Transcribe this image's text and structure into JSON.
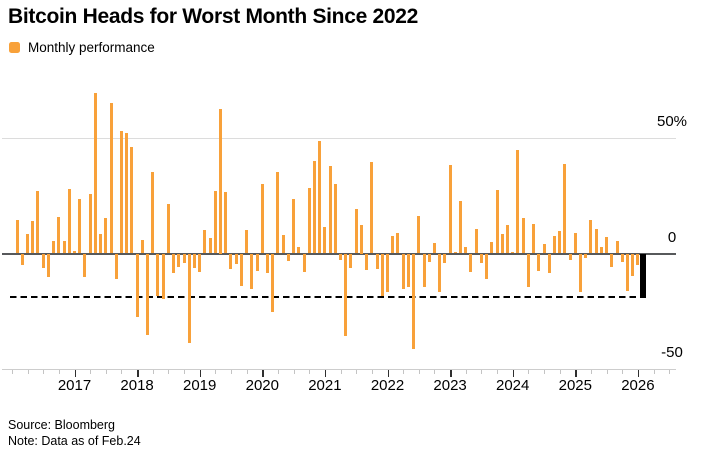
{
  "title": "Bitcoin Heads for Worst Month Since 2022",
  "legend": {
    "label": "Monthly performance"
  },
  "source": {
    "source_line": "Source: Bloomberg",
    "note_line": "Note: Data as of Feb.24"
  },
  "colors": {
    "bar_orange": "#F8A13A",
    "current_bar_black": "#000000",
    "zero_line": "#57595b",
    "gridline": "#dcdcdc",
    "axis_line": "#cdcdcd",
    "reference_line": "#000000"
  },
  "y_axis": {
    "ticks": [
      {
        "label": "50%",
        "value": 50
      },
      {
        "label": "0",
        "value": 0
      },
      {
        "label": "-50",
        "value": -50
      }
    ]
  },
  "x_axis": {
    "years": [
      "2017",
      "2018",
      "2019",
      "2020",
      "2021",
      "2022",
      "2023",
      "2024",
      "2025",
      "2026"
    ],
    "minor_tick_interval": "quarter"
  },
  "chart_data": {
    "type": "bar",
    "title": "Bitcoin Heads for Worst Month Since 2022",
    "series_name": "Monthly performance",
    "unit": "percent",
    "start_month": "2016-02",
    "end_month": "2026-02",
    "ylim": [
      -50,
      70
    ],
    "reference_line_value": -18.8,
    "current_month_index": 120,
    "current_month_value": -18.8,
    "values": [
      14.5,
      -5.0,
      8.5,
      14.0,
      27.0,
      -6.4,
      -10.0,
      5.3,
      15.7,
      5.3,
      27.6,
      1.0,
      23.5,
      -10.0,
      25.5,
      69.0,
      8.5,
      15.5,
      65.0,
      -11.0,
      53.0,
      52.0,
      46.0,
      -27.5,
      6.0,
      -35.3,
      35.0,
      -18.5,
      -19.5,
      21.5,
      -8.5,
      -6.0,
      -4.0,
      -38.5,
      -6.4,
      -7.9,
      10.3,
      6.5,
      27.0,
      62.5,
      26.5,
      -6.6,
      -4.6,
      -14.0,
      10.3,
      -15.5,
      -7.5,
      29.9,
      -8.3,
      -25.2,
      35.0,
      8.0,
      -3.3,
      23.5,
      2.6,
      -8.0,
      28.3,
      40.0,
      48.5,
      11.6,
      37.8,
      30.0,
      -2.8,
      -35.6,
      -6.1,
      19.0,
      12.5,
      -7.1,
      39.6,
      -6.5,
      -18.3,
      -16.8,
      7.5,
      8.8,
      -15.3,
      -14.5,
      -41.0,
      16.0,
      -14.5,
      -3.6,
      4.5,
      -16.8,
      -4.3,
      38.0,
      0.8,
      22.5,
      2.8,
      -8.0,
      10.5,
      -4.3,
      -10.8,
      5.0,
      27.5,
      8.6,
      12.2,
      0.8,
      44.5,
      15.3,
      -14.6,
      12.8,
      -7.5,
      4.0,
      -8.6,
      7.6,
      9.7,
      38.5,
      -2.8,
      8.8,
      -16.8,
      -1.8,
      14.6,
      10.5,
      2.8,
      7.2,
      -5.8,
      5.2,
      -3.6,
      -16.1,
      -9.9,
      -5.0,
      -18.8
    ]
  }
}
